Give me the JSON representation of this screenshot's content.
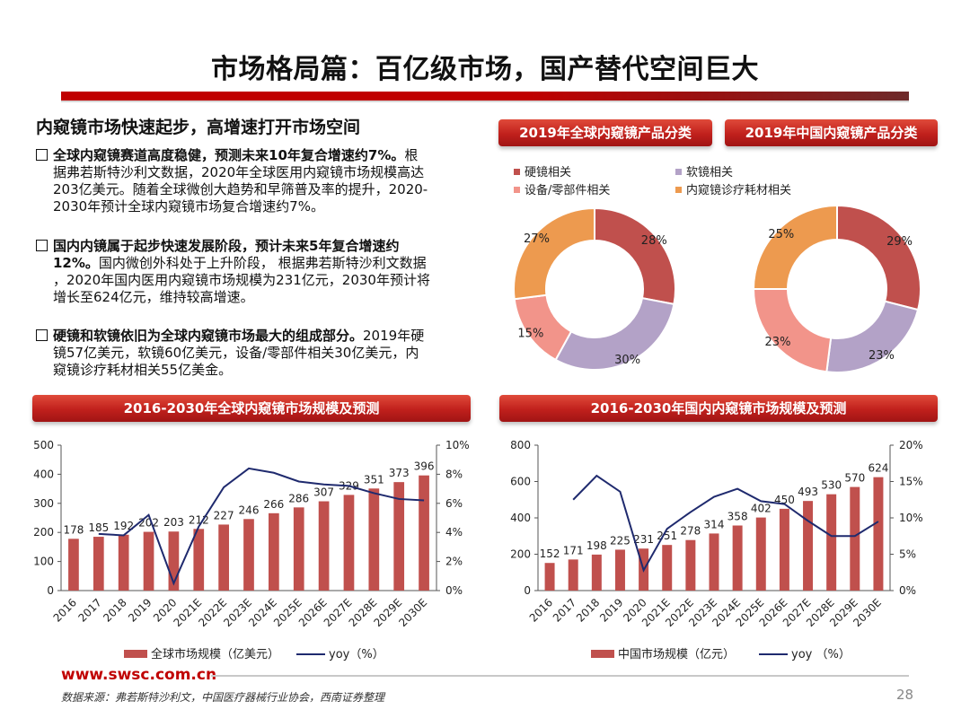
{
  "page": {
    "title": "市场格局篇：百亿级市场，国产替代空间巨大",
    "footer_url": "www.swsc.com.cn",
    "footer_source": "数据来源：弗若斯特沙利文，中国医疗器械行业协会，西南证券整理",
    "page_number": "28"
  },
  "left": {
    "heading": "内窥镜市场快速起步，高增速打开市场空间",
    "bullets": [
      {
        "lead": "全球内窥镜赛道高度稳健，预测未来10年复合增速约7%。",
        "lines": [
          "根",
          "据弗若斯特沙利文数据，2020年全球医用内窥镜市场规模高达",
          "203亿美元。随着全球微创大趋势和早筛普及率的提升，2020-",
          "2030年预计全球内窥镜市场复合增速约7%。"
        ]
      },
      {
        "lead": "国内内镜属于起步快速发展阶段，预计未来5年复合增速约",
        "lead2": "12%。",
        "lines": [
          "国内微创外科处于上升阶段， 根据弗若斯特沙利文数据",
          "，2020年国内医用内窥镜市场规模为231亿元，2030年预计将",
          "增长至624亿元，维持较高增速。"
        ]
      },
      {
        "lead": "硬镜和软镜依旧为全球内窥镜市场最大的组成部分。",
        "lines": [
          "2019年硬",
          "镜57亿美元，软镜60亿美元，设备/零部件相关30亿美元，内",
          "窥镜诊疗耗材相关55亿美金。"
        ]
      }
    ]
  },
  "colors": {
    "hard": "#c0504d",
    "soft": "#b3a2c7",
    "device": "#f2948a",
    "consumable": "#ed9a4f",
    "bar": "#c0504d",
    "line": "#1f2a6e"
  },
  "ribbons": {
    "global_pie": "2019年全球内窥镜产品分类",
    "china_pie": "2019年中国内窥镜产品分类",
    "global_bar": "2016-2030年全球内窥镜市场规模及预测",
    "china_bar": "2016-2030年国内内窥镜市场规模及预测"
  },
  "chart_data": [
    {
      "type": "pie",
      "title": "2019年全球内窥镜产品分类",
      "legend": [
        "硬镜相关",
        "软镜相关",
        "设备/零部件相关",
        "内窥镜诊疗耗材相关"
      ],
      "slices": [
        {
          "name": "硬镜相关",
          "value": 28,
          "label": "28%"
        },
        {
          "name": "软镜相关",
          "value": 30,
          "label": "30%"
        },
        {
          "name": "设备/零部件相关",
          "value": 15,
          "label": "15%"
        },
        {
          "name": "内窥镜诊疗耗材相关",
          "value": 27,
          "label": "27%"
        }
      ]
    },
    {
      "type": "pie",
      "title": "2019年中国内窥镜产品分类",
      "slices": [
        {
          "name": "硬镜相关",
          "value": 29,
          "label": "29%"
        },
        {
          "name": "软镜相关",
          "value": 23,
          "label": "23%"
        },
        {
          "name": "设备/零部件相关",
          "value": 23,
          "label": "23%"
        },
        {
          "name": "内窥镜诊疗耗材相关",
          "value": 25,
          "label": "25%"
        }
      ]
    },
    {
      "type": "bar",
      "title": "2016-2030年全球内窥镜市场规模及预测",
      "categories": [
        "2016",
        "2017",
        "2018",
        "2019",
        "2020",
        "2021E",
        "2022E",
        "2023E",
        "2024E",
        "2025E",
        "2026E",
        "2027E",
        "2028E",
        "2029E",
        "2030E"
      ],
      "series": [
        {
          "name": "全球市场规模（亿美元）",
          "kind": "bar",
          "axis": "left",
          "values": [
            178,
            185,
            192,
            202,
            203,
            212,
            227,
            246,
            266,
            286,
            307,
            329,
            351,
            373,
            396
          ]
        },
        {
          "name": "yoy（%）",
          "kind": "line",
          "axis": "right",
          "values": [
            null,
            3.9,
            3.8,
            5.2,
            0.5,
            4.4,
            7.1,
            8.4,
            8.1,
            7.5,
            7.3,
            7.2,
            6.7,
            6.3,
            6.2
          ]
        }
      ],
      "y_left": {
        "min": 0,
        "max": 500,
        "ticks": [
          "0",
          "100",
          "200",
          "300",
          "400",
          "500"
        ]
      },
      "y_right": {
        "min": 0,
        "max": 10,
        "ticks": [
          "0%",
          "2%",
          "4%",
          "6%",
          "8%",
          "10%"
        ]
      }
    },
    {
      "type": "bar",
      "title": "2016-2030年国内内窥镜市场规模及预测",
      "categories": [
        "2016",
        "2017",
        "2018",
        "2019",
        "2020",
        "2021E",
        "2022E",
        "2023E",
        "2024E",
        "2025E",
        "2026E",
        "2027E",
        "2028E",
        "2029E",
        "2030E"
      ],
      "series": [
        {
          "name": "中国市场规模（亿元）",
          "kind": "bar",
          "axis": "left",
          "values": [
            152,
            171,
            198,
            225,
            231,
            251,
            278,
            314,
            358,
            402,
            450,
            493,
            530,
            570,
            624
          ]
        },
        {
          "name": "yoy （%）",
          "kind": "line",
          "axis": "right",
          "values": [
            null,
            12.5,
            15.8,
            13.6,
            2.8,
            8.5,
            10.8,
            12.9,
            14.0,
            12.3,
            11.9,
            9.6,
            7.5,
            7.5,
            9.5
          ]
        }
      ],
      "y_left": {
        "min": 0,
        "max": 800,
        "ticks": [
          "0",
          "200",
          "400",
          "600",
          "800"
        ]
      },
      "y_right": {
        "min": 0,
        "max": 20,
        "ticks": [
          "0%",
          "5%",
          "10%",
          "15%",
          "20%"
        ]
      }
    }
  ]
}
